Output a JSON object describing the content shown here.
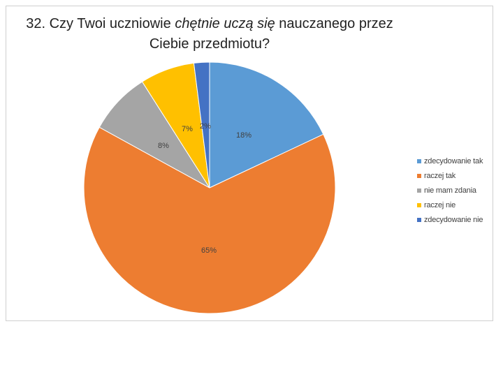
{
  "chart_data": {
    "type": "pie",
    "title_parts": [
      {
        "text": "32. Czy Twoi uczniowie ",
        "italic": false
      },
      {
        "text": "chętnie uczą się",
        "italic": true
      },
      {
        "text": " nauczanego przez Ciebie przedmiotu?",
        "italic": false
      }
    ],
    "categories": [
      "zdecydowanie tak",
      "raczej tak",
      "nie mam zdania",
      "raczej nie",
      "zdecydowanie nie"
    ],
    "values": [
      18,
      65,
      8,
      7,
      2
    ],
    "data_labels": [
      "18%",
      "65%",
      "8%",
      "7%",
      "2%"
    ],
    "colors": [
      "#5b9bd5",
      "#ed7d31",
      "#a5a5a5",
      "#ffc000",
      "#4472c4"
    ],
    "legend_position": "right",
    "start_angle_deg": 0,
    "direction": "clockwise"
  }
}
